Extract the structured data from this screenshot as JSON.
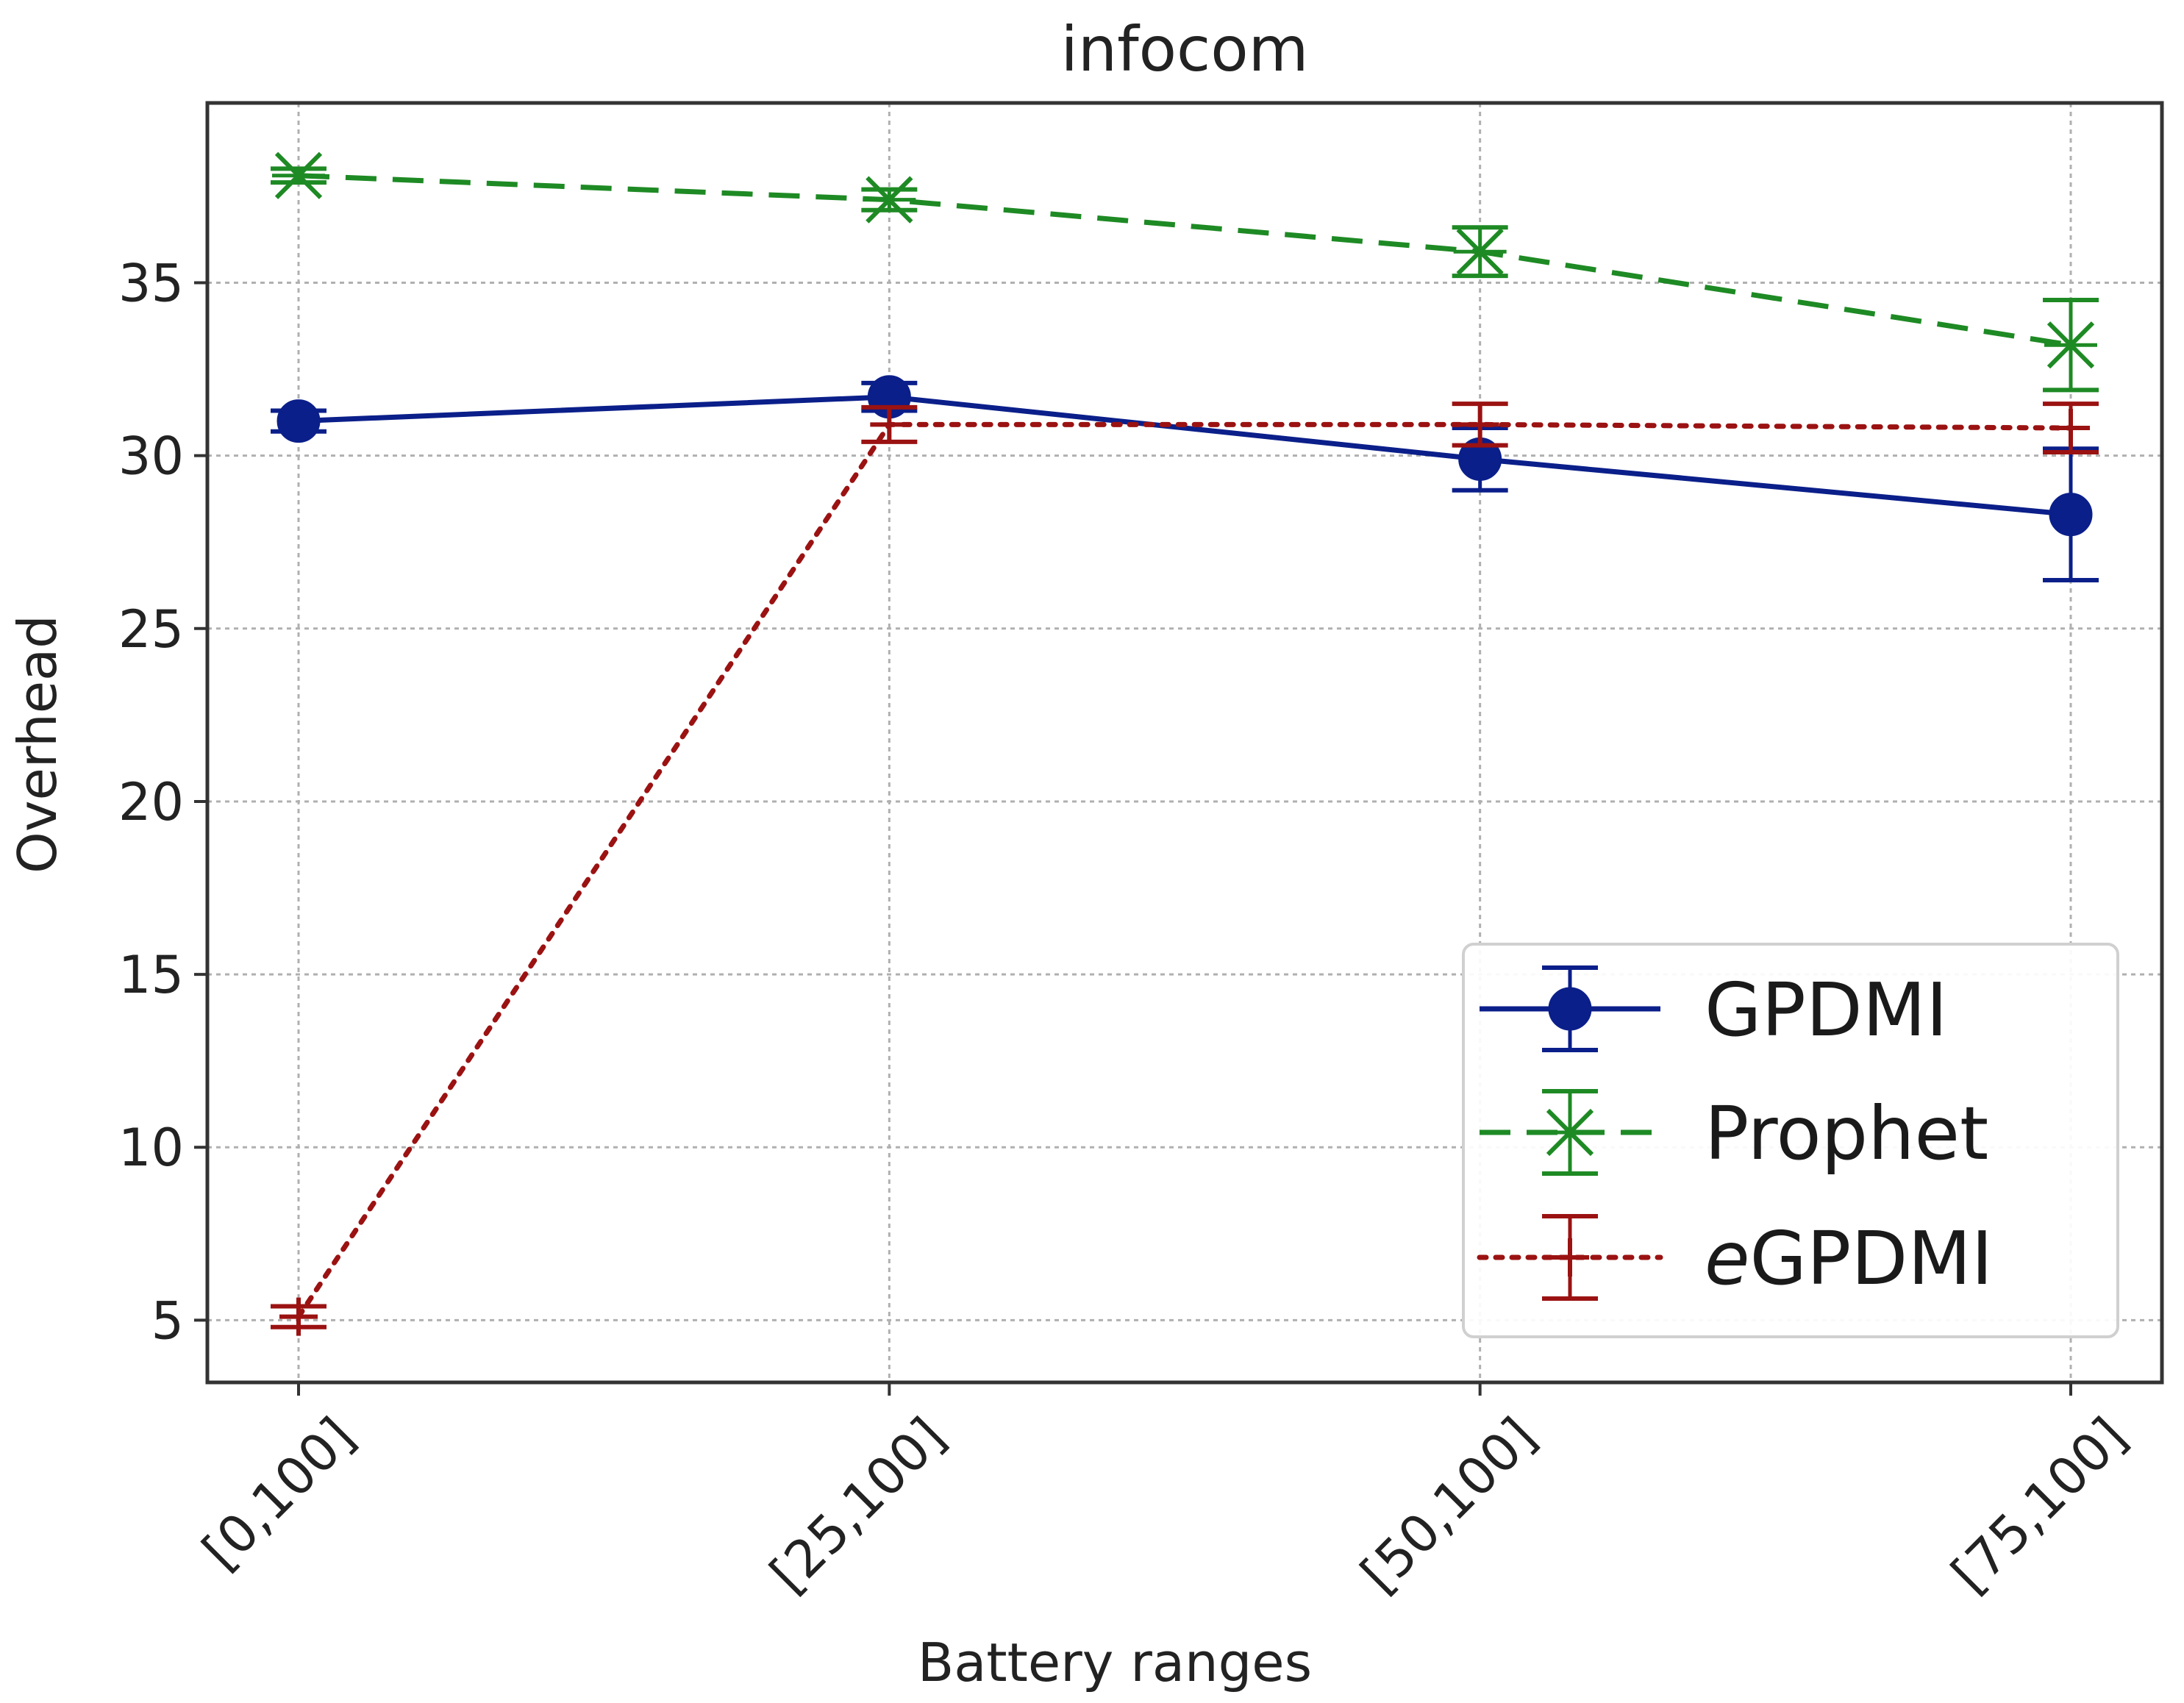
{
  "chart_data": {
    "type": "line",
    "title": "infocom",
    "xlabel": "Battery ranges",
    "ylabel": "Overhead",
    "categories": [
      "[0,100]",
      "[25,100]",
      "[50,100]",
      "[75,100]"
    ],
    "ylim": [
      3.2,
      40.2
    ],
    "yticks": [
      5,
      10,
      15,
      20,
      25,
      30,
      35
    ],
    "grid": true,
    "legend_position": "bottom-right",
    "series": [
      {
        "name": "GPDMI",
        "color": "#0b1f8a",
        "marker": "circle",
        "linestyle": "solid",
        "values": [
          31.0,
          31.7,
          29.9,
          28.3
        ],
        "errors": [
          0.3,
          0.4,
          0.9,
          1.9
        ]
      },
      {
        "name": "Prophet",
        "color": "#1e8a24",
        "marker": "x",
        "linestyle": "dashed",
        "values": [
          38.1,
          37.4,
          35.9,
          33.2
        ],
        "errors": [
          0.2,
          0.3,
          0.7,
          1.3
        ]
      },
      {
        "name": "eGPDMI",
        "name_italic_prefix": "e",
        "name_rest": "GPDMI",
        "color": "#9b1212",
        "marker": "plus",
        "linestyle": "dotted",
        "values": [
          5.1,
          30.9,
          30.9,
          30.8
        ],
        "errors": [
          0.3,
          0.5,
          0.6,
          0.7
        ]
      }
    ]
  }
}
